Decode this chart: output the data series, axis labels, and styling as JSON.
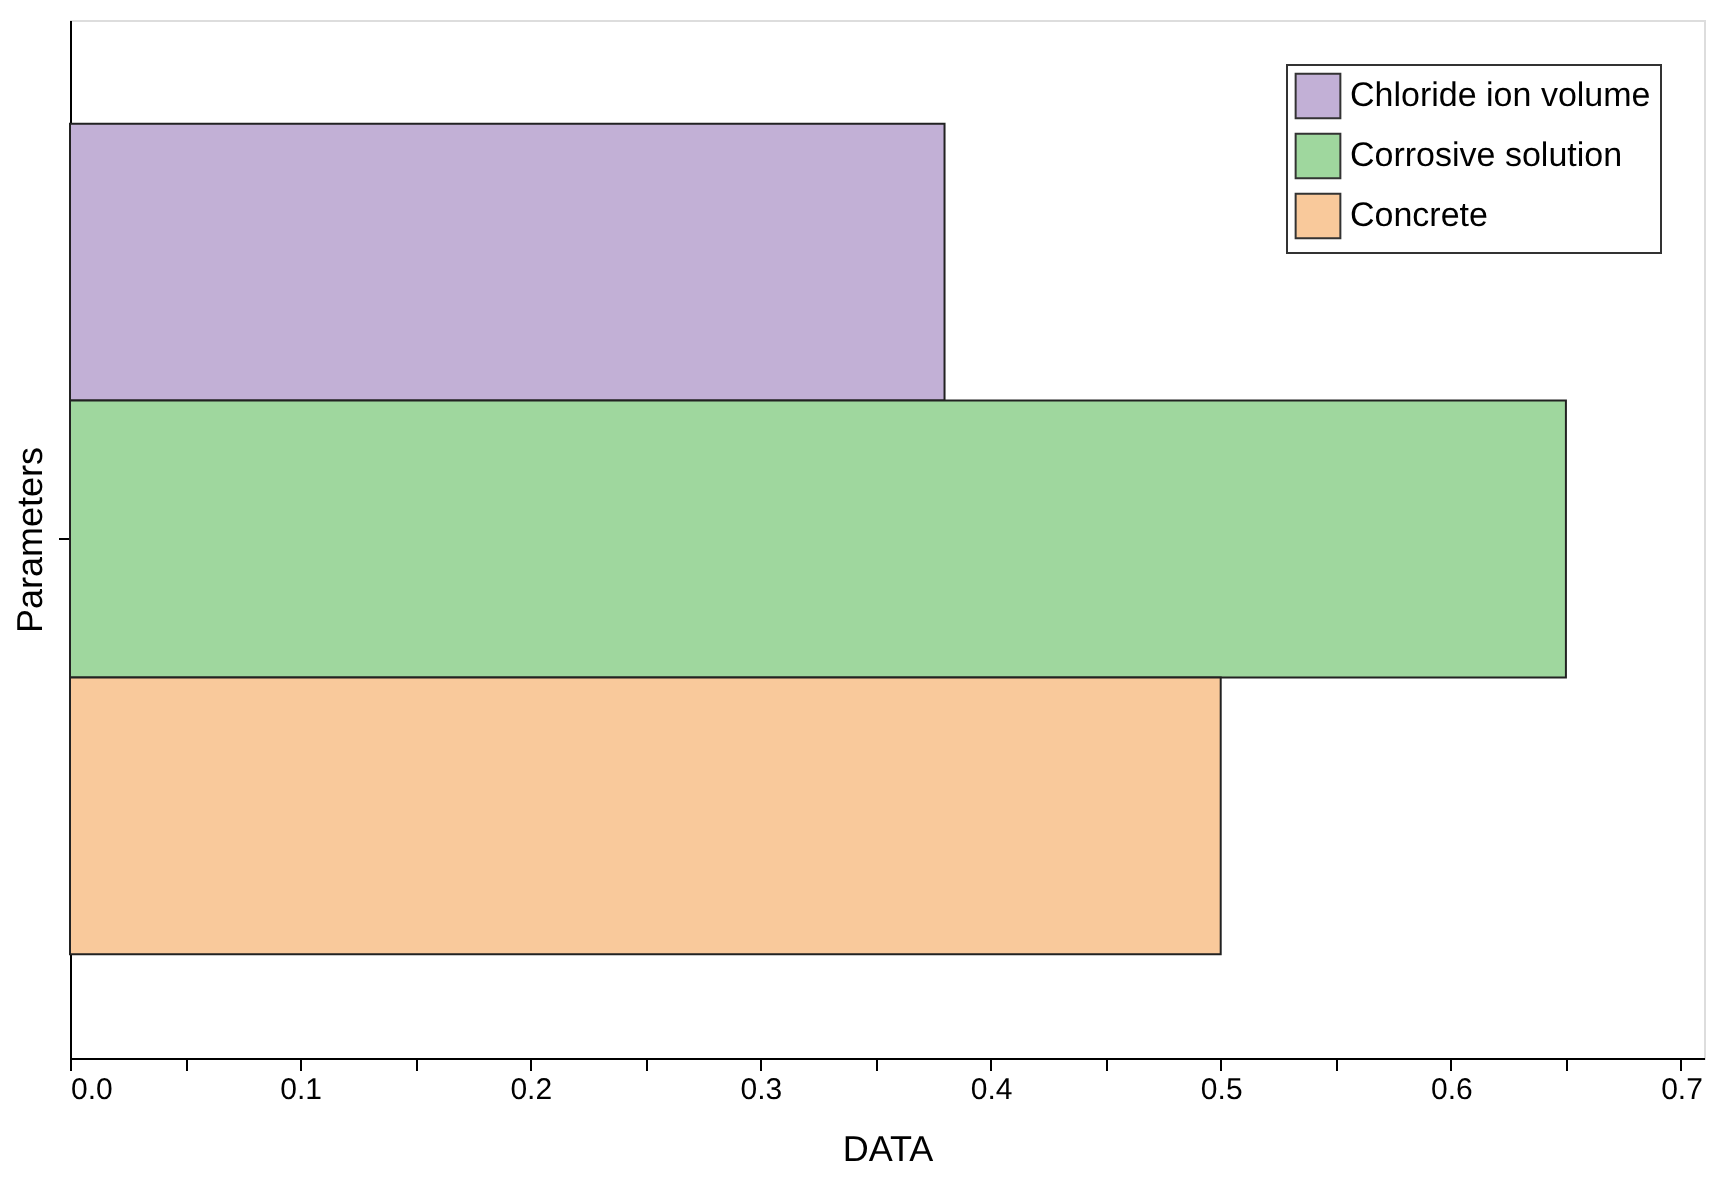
{
  "chart_data": {
    "type": "bar",
    "orientation": "horizontal",
    "categories": [
      null
    ],
    "xlabel": "DATA",
    "ylabel": "Parameters",
    "series": [
      {
        "name": "Chloride ion volume",
        "color": "#c2b0d6",
        "values": [
          0.38
        ]
      },
      {
        "name": "Corrosive solution",
        "color": "#9fd79e",
        "values": [
          0.65
        ]
      },
      {
        "name": "Concrete",
        "color": "#f9c99b",
        "values": [
          0.5
        ]
      }
    ],
    "xlim": [
      0,
      0.71
    ],
    "xticks": [
      {
        "value": 0,
        "label": "0.0"
      },
      {
        "value": 0.05,
        "label": null
      },
      0.1,
      {
        "value": 0.15,
        "label": null
      },
      0.2,
      {
        "value": 0.25,
        "label": null
      },
      0.3,
      {
        "value": 0.35,
        "label": null
      },
      0.4,
      {
        "value": 0.45,
        "label": null
      },
      0.5,
      {
        "value": 0.55,
        "label": null
      },
      0.6,
      {
        "value": 0.65,
        "label": null
      },
      0.7
    ],
    "tick_labels": "x",
    "legend": "top right",
    "grid": false
  }
}
